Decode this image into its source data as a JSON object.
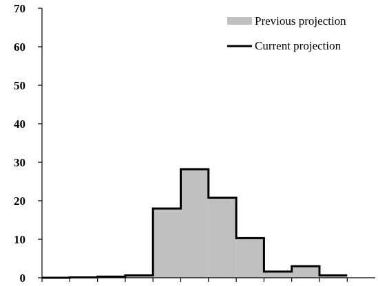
{
  "chart_data": {
    "type": "bar",
    "title": "",
    "xlabel": "",
    "ylabel": "",
    "ylim": [
      0,
      70
    ],
    "y_ticks": [
      0,
      10,
      20,
      30,
      40,
      50,
      60,
      70
    ],
    "bin_count": 11,
    "grid": false,
    "legend_position": "top-right",
    "series": [
      {
        "name": "Previous projection",
        "style": "filled",
        "color": "#c0c0c0",
        "values": [
          0,
          0.1,
          0.3,
          0.6,
          18,
          28.2,
          20.8,
          10.3,
          1.6,
          3.0,
          0.6
        ]
      },
      {
        "name": "Current projection",
        "style": "step-outline",
        "color": "#000000",
        "values": [
          0,
          0.1,
          0.3,
          0.6,
          18,
          28.2,
          20.8,
          10.3,
          1.6,
          3.0,
          0.6
        ]
      }
    ]
  }
}
